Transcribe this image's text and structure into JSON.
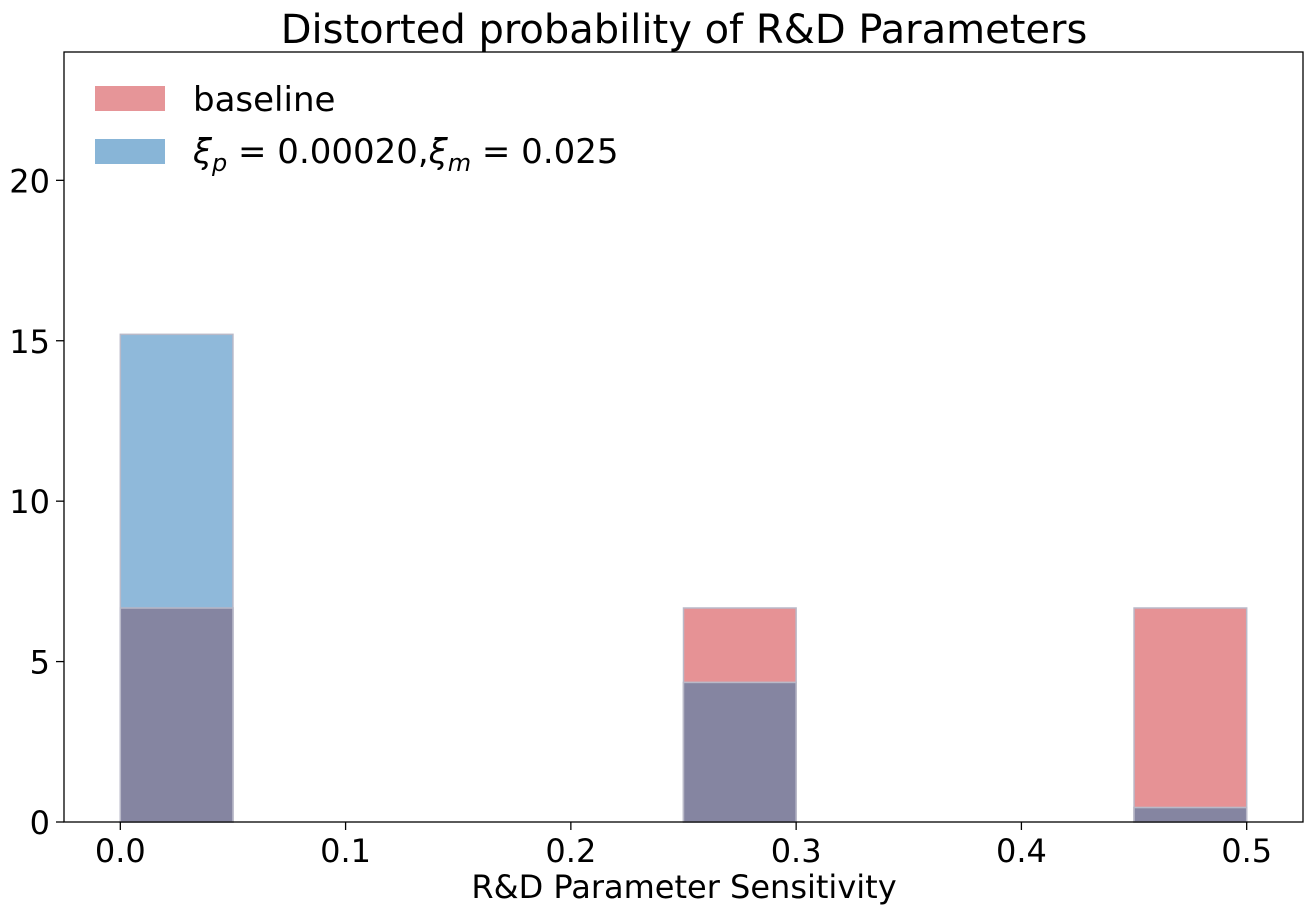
{
  "chart_data": {
    "type": "bar",
    "title": "Distorted probability of R&D Parameters",
    "xlabel": "R&D Parameter Sensitivity",
    "ylabel": "",
    "xlim": [
      -0.025,
      0.525
    ],
    "ylim": [
      0,
      24
    ],
    "xticks": [
      "0.0",
      "0.1",
      "0.2",
      "0.3",
      "0.4",
      "0.5"
    ],
    "yticks": [
      "0",
      "5",
      "10",
      "15",
      "20"
    ],
    "bins": [
      {
        "x0": 0.0,
        "x1": 0.05
      },
      {
        "x0": 0.25,
        "x1": 0.3
      },
      {
        "x0": 0.45,
        "x1": 0.5
      }
    ],
    "series": [
      {
        "name": "baseline",
        "color": "#e07a7e",
        "values": [
          6.67,
          6.67,
          6.67
        ]
      },
      {
        "name": "ξp = 0.00020,ξm = 0.025",
        "color": "#6aa2cd",
        "values": [
          15.2,
          4.35,
          0.45
        ]
      }
    ],
    "overlap_color": "#8585a1",
    "legend": "top-left",
    "grid": false
  }
}
